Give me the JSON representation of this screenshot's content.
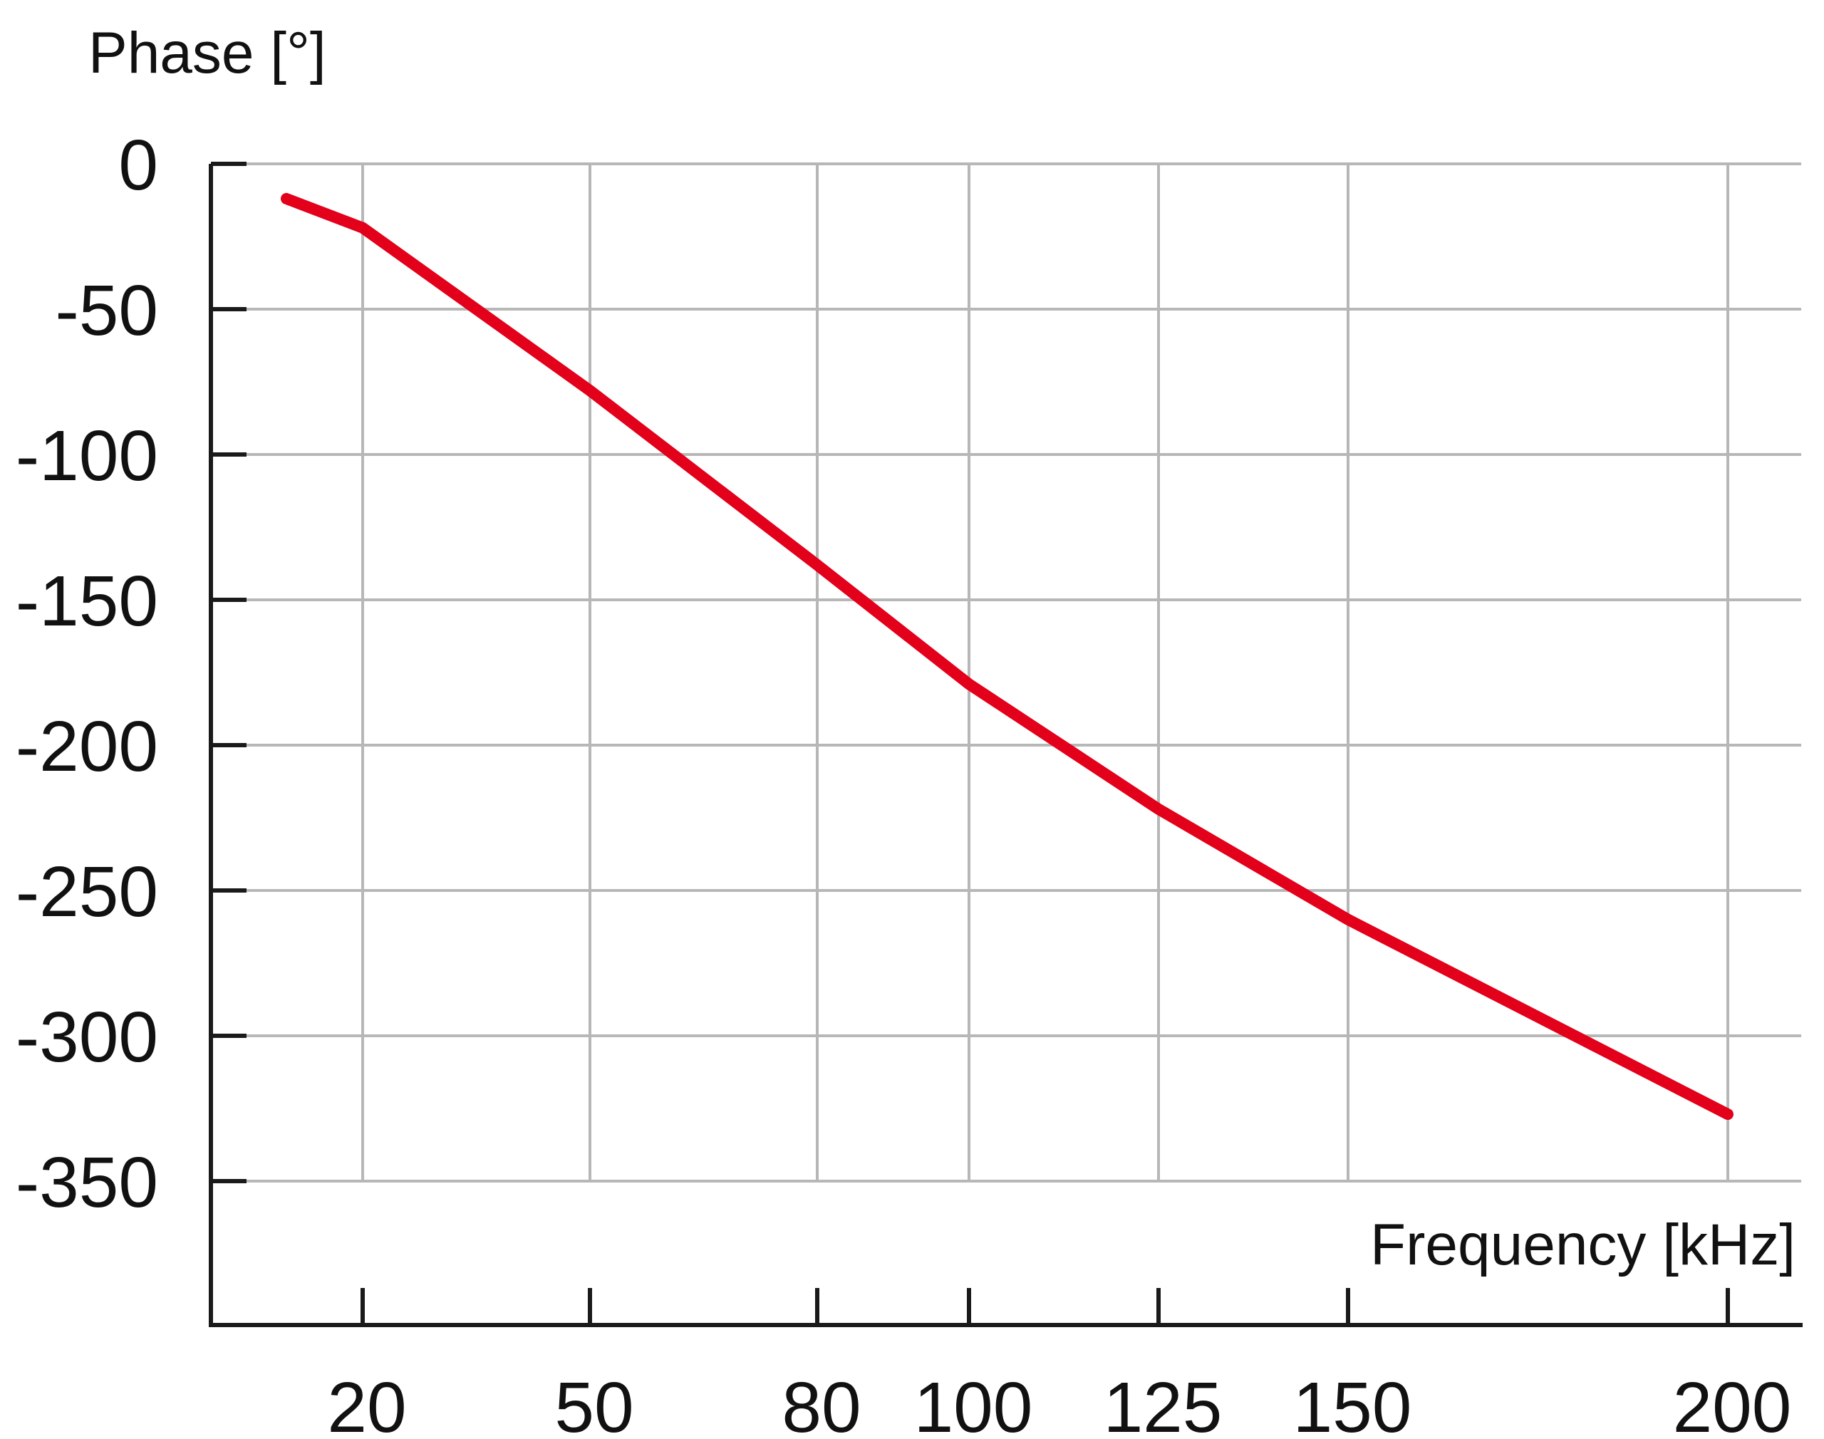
{
  "chart_data": {
    "type": "line",
    "title": "",
    "xlabel": "Frequency [kHz]",
    "ylabel": "Phase [°]",
    "x_ticks": [
      20,
      50,
      80,
      100,
      125,
      150,
      200
    ],
    "x_tick_labels": [
      "20",
      "50",
      "80",
      "100",
      "125",
      "150",
      "200"
    ],
    "x_scale": "categorical",
    "y_ticks": [
      0,
      -50,
      -100,
      -150,
      -200,
      -250,
      -300,
      -350
    ],
    "y_tick_labels": [
      "0",
      "-50",
      "-100",
      "-150",
      "-200",
      "-250",
      "-300",
      "-350"
    ],
    "ylim": [
      -400,
      0
    ],
    "grid": true,
    "series": [
      {
        "color": "#e3001b",
        "points": [
          {
            "x": 10,
            "y": -12
          },
          {
            "x": 20,
            "y": -22
          },
          {
            "x": 50,
            "y": -78
          },
          {
            "x": 80,
            "y": -138
          },
          {
            "x": 100,
            "y": -179
          },
          {
            "x": 125,
            "y": -222
          },
          {
            "x": 150,
            "y": -260
          },
          {
            "x": 200,
            "y": -327
          }
        ]
      }
    ],
    "colors": {
      "line": "#e3001b",
      "grid": "#b7b7b7",
      "axis": "#1a1a1a"
    }
  }
}
